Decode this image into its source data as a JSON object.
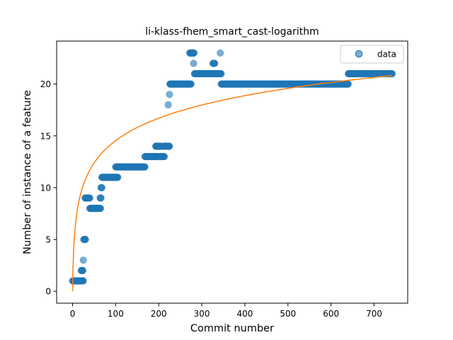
{
  "chart_data": {
    "type": "scatter",
    "title": "li-klass-fhem_smart_cast-logarithm",
    "xlabel": "Commit number",
    "ylabel": "Number of instance of a feature",
    "xlim": [
      -37,
      778
    ],
    "ylim": [
      -1.15,
      24.15
    ],
    "xticks": [
      0,
      100,
      200,
      300,
      400,
      500,
      600,
      700
    ],
    "yticks": [
      0,
      5,
      10,
      15,
      20
    ],
    "grid": false,
    "legend": {
      "placement": "top-right",
      "entries": [
        "data"
      ]
    },
    "colors": {
      "data": "#1f77b4",
      "fit": "#ff7f0e"
    },
    "series": [
      {
        "name": "data",
        "kind": "scatter",
        "runs": [
          {
            "x_start": 0,
            "x_end": 25,
            "y": 1
          },
          {
            "x_start": 20,
            "x_end": 24,
            "y": 2
          },
          {
            "x_start": 25,
            "x_end": 25,
            "y": 3
          },
          {
            "x_start": 26,
            "x_end": 30,
            "y": 5
          },
          {
            "x_start": 29,
            "x_end": 40,
            "y": 9
          },
          {
            "x_start": 40,
            "x_end": 65,
            "y": 8
          },
          {
            "x_start": 64,
            "x_end": 66,
            "y": 9
          },
          {
            "x_start": 66,
            "x_end": 68,
            "y": 10
          },
          {
            "x_start": 68,
            "x_end": 105,
            "y": 11
          },
          {
            "x_start": 100,
            "x_end": 168,
            "y": 12
          },
          {
            "x_start": 168,
            "x_end": 198,
            "y": 13
          },
          {
            "x_start": 193,
            "x_end": 206,
            "y": 14
          },
          {
            "x_start": 203,
            "x_end": 213,
            "y": 13
          },
          {
            "x_start": 212,
            "x_end": 225,
            "y": 14
          },
          {
            "x_start": 222,
            "x_end": 222,
            "y": 18
          },
          {
            "x_start": 225,
            "x_end": 225,
            "y": 19
          },
          {
            "x_start": 226,
            "x_end": 275,
            "y": 20
          },
          {
            "x_start": 272,
            "x_end": 282,
            "y": 23
          },
          {
            "x_start": 281,
            "x_end": 281,
            "y": 22
          },
          {
            "x_start": 283,
            "x_end": 345,
            "y": 21
          },
          {
            "x_start": 326,
            "x_end": 330,
            "y": 22
          },
          {
            "x_start": 343,
            "x_end": 343,
            "y": 23
          },
          {
            "x_start": 345,
            "x_end": 640,
            "y": 20
          },
          {
            "x_start": 640,
            "x_end": 742,
            "y": 21
          }
        ]
      },
      {
        "name": "",
        "kind": "line",
        "model": "a*ln(x+1)",
        "a": 3.15,
        "x_range": [
          0,
          742
        ]
      }
    ]
  }
}
